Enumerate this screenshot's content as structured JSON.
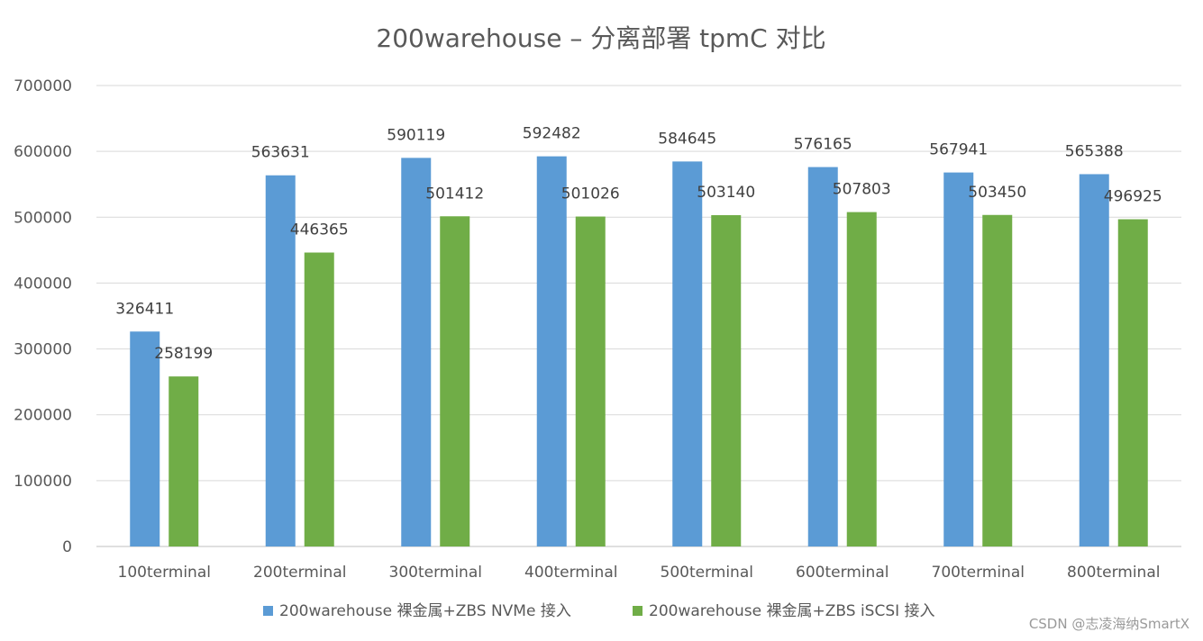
{
  "chart_data": {
    "type": "bar",
    "title": "200warehouse – 分离部署 tpmC 对比",
    "categories": [
      "100terminal",
      "200terminal",
      "300terminal",
      "400terminal",
      "500terminal",
      "600terminal",
      "700terminal",
      "800terminal"
    ],
    "series": [
      {
        "name": "200warehouse 裸金属+ZBS NVMe 接入",
        "color": "#5B9BD5",
        "values": [
          326411,
          563631,
          590119,
          592482,
          584645,
          576165,
          567941,
          565388
        ]
      },
      {
        "name": "200warehouse 裸金属+ZBS iSCSI 接入",
        "color": "#70AD47",
        "values": [
          258199,
          446365,
          501412,
          501026,
          503140,
          507803,
          503450,
          496925
        ]
      }
    ],
    "ylim": [
      0,
      700000
    ],
    "yticks": [
      0,
      100000,
      200000,
      300000,
      400000,
      500000,
      600000,
      700000
    ],
    "xlabel": "",
    "ylabel": "",
    "grid": true,
    "legend_position": "bottom",
    "data_labels": true
  },
  "watermark": "CSDN @志凌海纳SmartX"
}
